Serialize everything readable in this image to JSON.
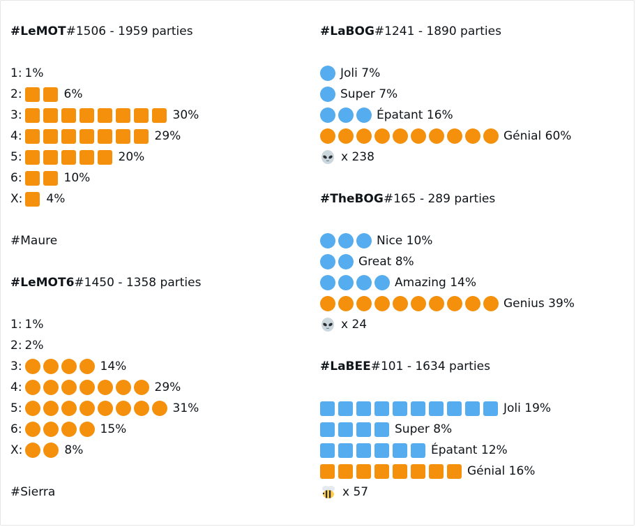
{
  "colors": {
    "orange": "#f4900c",
    "blue": "#55acee"
  },
  "left": {
    "lemot": {
      "tag": "#LeMOT",
      "rest": " #1506 - 1959 parties",
      "rows": [
        {
          "label": "1:",
          "count": 0,
          "pct": "1%"
        },
        {
          "label": "2:",
          "count": 2,
          "pct": "6%"
        },
        {
          "label": "3:",
          "count": 8,
          "pct": "30%"
        },
        {
          "label": "4:",
          "count": 7,
          "pct": "29%"
        },
        {
          "label": "5:",
          "count": 5,
          "pct": "20%"
        },
        {
          "label": "6:",
          "count": 2,
          "pct": "10%"
        },
        {
          "label": "X:",
          "count": 1,
          "pct": "4%"
        }
      ]
    },
    "maure": "#Maure",
    "lemot6": {
      "tag": "#LeMOT6",
      "rest": " #1450 - 1358 parties",
      "rows": [
        {
          "label": "1:",
          "count": 0,
          "pct": "1%"
        },
        {
          "label": "2:",
          "count": 0,
          "pct": "2%"
        },
        {
          "label": "3:",
          "count": 4,
          "pct": "14%"
        },
        {
          "label": "4:",
          "count": 7,
          "pct": "29%"
        },
        {
          "label": "5:",
          "count": 8,
          "pct": "31%"
        },
        {
          "label": "6:",
          "count": 4,
          "pct": "15%"
        },
        {
          "label": "X:",
          "count": 2,
          "pct": "8%"
        }
      ]
    },
    "sierra": "#Sierra"
  },
  "right": {
    "labog": {
      "tag": "#LaBOG",
      "rest": " #1241 - 1890 parties",
      "rows": [
        {
          "color": "blue",
          "count": 1,
          "text": "Joli 7%"
        },
        {
          "color": "blue",
          "count": 1,
          "text": "Super 7%"
        },
        {
          "color": "blue",
          "count": 3,
          "text": "Épatant 16%"
        },
        {
          "color": "orange",
          "count": 10,
          "text": "Génial 60%"
        }
      ],
      "footer": {
        "icon": "alien-icon",
        "text": "x 238"
      }
    },
    "thebog": {
      "tag": "#TheBOG",
      "rest": " #165 - 289 parties",
      "rows": [
        {
          "color": "blue",
          "count": 3,
          "text": "Nice 10%"
        },
        {
          "color": "blue",
          "count": 2,
          "text": "Great 8%"
        },
        {
          "color": "blue",
          "count": 4,
          "text": "Amazing 14%"
        },
        {
          "color": "orange",
          "count": 10,
          "text": "Genius 39%"
        }
      ],
      "footer": {
        "icon": "alien-icon",
        "text": "x 24"
      }
    },
    "labee": {
      "tag": "#LaBEE",
      "rest": " #101 - 1634 parties",
      "rows": [
        {
          "color": "blue",
          "count": 10,
          "text": "Joli 19%"
        },
        {
          "color": "blue",
          "count": 4,
          "text": "Super 8%"
        },
        {
          "color": "blue",
          "count": 6,
          "text": "Épatant 12%"
        },
        {
          "color": "orange",
          "count": 8,
          "text": "Génial 16%"
        }
      ],
      "footer": {
        "icon": "bee-icon",
        "text": "x 57"
      }
    }
  }
}
